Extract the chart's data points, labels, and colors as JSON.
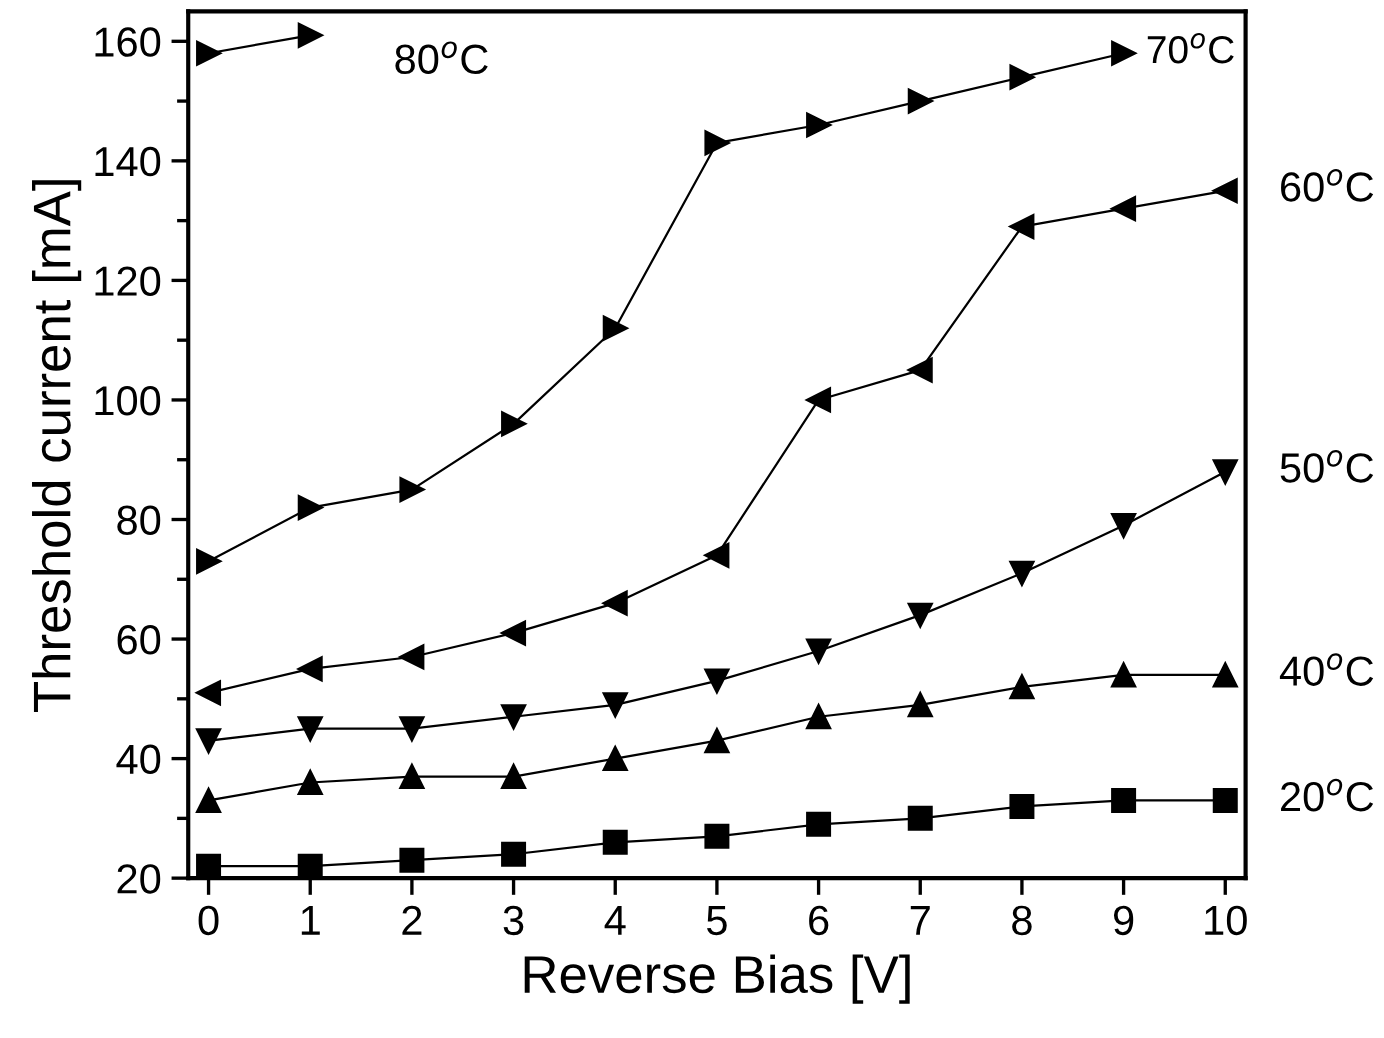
{
  "chart_data": {
    "type": "line",
    "xlabel": "Reverse Bias [V]",
    "ylabel": "Threshold current [mA]",
    "xlim": [
      -0.2,
      10.2
    ],
    "xticks": [
      0,
      1,
      2,
      3,
      4,
      5,
      6,
      7,
      8,
      9,
      10
    ],
    "ylim": [
      20,
      165
    ],
    "yticks": [
      20,
      40,
      60,
      80,
      100,
      120,
      140,
      160
    ],
    "grid": false,
    "legend": false,
    "line_style": "solid",
    "series": [
      {
        "name": "20$^{o}$C",
        "color": "#000000",
        "marker": "square",
        "x": [
          0,
          1,
          2,
          3,
          4,
          5,
          6,
          7,
          8,
          9,
          10
        ],
        "values": [
          22,
          22,
          23,
          24,
          26,
          27,
          29,
          30,
          32,
          33,
          33
        ]
      },
      {
        "name": "40$^{o}$C",
        "color": "#000000",
        "marker": "triangle",
        "x": [
          0,
          1,
          2,
          3,
          4,
          5,
          6,
          7,
          8,
          9,
          10
        ],
        "values": [
          33,
          36,
          37,
          37,
          40,
          43,
          47,
          49,
          52,
          54,
          54
        ]
      },
      {
        "name": "50$^{o}$C",
        "color": "#000000",
        "marker": "triangle-down",
        "x": [
          0,
          1,
          2,
          3,
          4,
          5,
          6,
          7,
          8,
          9,
          10
        ],
        "values": [
          43,
          45,
          45,
          47,
          49,
          53,
          58,
          64,
          71,
          79,
          88
        ]
      },
      {
        "name": "60$^{o}$C",
        "color": "#000000",
        "marker": "triangle-left",
        "x": [
          0,
          1,
          2,
          3,
          4,
          5,
          6,
          7,
          8,
          9,
          10
        ],
        "values": [
          51,
          55,
          57,
          61,
          66,
          74,
          100,
          105,
          129,
          132,
          135
        ]
      },
      {
        "name": "70$^{o}$C",
        "color": "#000000",
        "marker": "triangle-right",
        "x": [
          0,
          1,
          2,
          3,
          4,
          5,
          6,
          7,
          8,
          9
        ],
        "values": [
          73,
          82,
          85,
          96,
          112,
          143,
          146,
          150,
          154,
          158
        ]
      },
      {
        "name": "80$^{o}$C",
        "color": "#000000",
        "marker": "triangle-right",
        "x": [
          0,
          1
        ],
        "values": [
          158,
          161
        ]
      }
    ]
  }
}
